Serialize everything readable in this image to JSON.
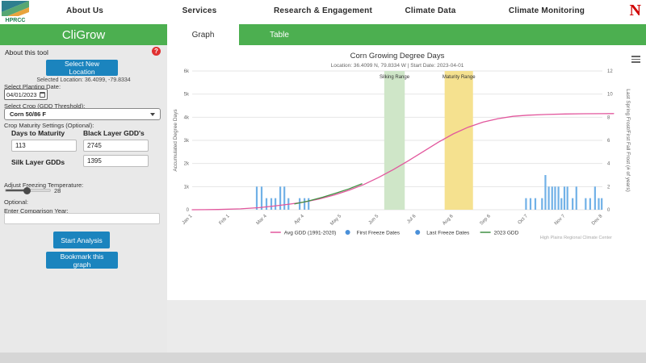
{
  "brand": {
    "logo_text": "HPRCC",
    "university_logo": "N"
  },
  "nav": {
    "items": [
      "About Us",
      "Services",
      "Research & Engagement",
      "Climate Data",
      "Climate Monitoring"
    ]
  },
  "app": {
    "title": "CliGrow",
    "about_label": "About this tool",
    "help_icon": "?"
  },
  "tabs": [
    {
      "label": "Graph"
    },
    {
      "label": "Table"
    }
  ],
  "sidebar": {
    "select_location_button": "Select New Location",
    "selected_location": "Selected Location: 36.4099, -79.8334",
    "planting_date_label": "Select Planting Date:",
    "planting_date_value": "04/01/2023",
    "crop_label": "Select Crop (GDD Threshold):",
    "crop_value": "Corn 50/86 F",
    "maturity_label": "Crop Maturity Settings (Optional):",
    "days_to_maturity_label": "Days to Maturity",
    "days_to_maturity_value": "113",
    "black_layer_label": "Black Layer GDD's",
    "black_layer_value": "2745",
    "silk_layer_label": "Silk Layer GDDs",
    "silk_layer_value": "1395",
    "freeze_temp_label": "Adjust Freezing Temperature:",
    "freeze_temp_value": "28",
    "optional_label": "Optional:",
    "comparison_year_label": "Enter Comparison Year:",
    "comparison_year_value": "",
    "start_button": "Start Analysis",
    "bookmark_button": "Bookmark this graph"
  },
  "credit": "High Plains Regional Climate Center",
  "chart_data": {
    "type": "line",
    "title": "Corn Growing Degree Days",
    "subtitle": "Location: 36.4099 N, 79.8334 W | Start Date: 2023-04-01",
    "x_tick_labels": [
      "Jan 1",
      "Feb 1",
      "Mar 4",
      "Apr 4",
      "May 5",
      "Jun 5",
      "Jul 6",
      "Aug 6",
      "Sep 6",
      "Oct 7",
      "Nov 7",
      "Dec 8"
    ],
    "y_left": {
      "title": "Accumulated Degree Days",
      "min": 0,
      "max": 6000,
      "tick_labels": [
        "0",
        "1k",
        "2k",
        "3k",
        "4k",
        "5k",
        "6k"
      ]
    },
    "y_right": {
      "title": "Last Spring Frost/First Fall Frost (# of years)",
      "min": 0,
      "max": 12,
      "tick_labels": [
        "0",
        "2",
        "4",
        "6",
        "8",
        "10",
        "12"
      ]
    },
    "grid": true,
    "legend_position": "bottom",
    "plot_bands": [
      {
        "label": "Silking Range",
        "x_from": 5.15,
        "x_to": 5.7,
        "color": "#cfe6c8"
      },
      {
        "label": "Maturity Range",
        "x_from": 6.77,
        "x_to": 7.53,
        "color": "#f5e18f"
      }
    ],
    "series": [
      {
        "name": "Avg GDD (1991-2020)",
        "type": "line",
        "axis": "left",
        "color": "#e2579d",
        "marker": "line",
        "points": [
          [
            0,
            0
          ],
          [
            0.7,
            10
          ],
          [
            1.3,
            40
          ],
          [
            1.8,
            90
          ],
          [
            2.2,
            160
          ],
          [
            2.6,
            240
          ],
          [
            3.0,
            330
          ],
          [
            3.4,
            460
          ],
          [
            3.8,
            630
          ],
          [
            4.2,
            840
          ],
          [
            4.6,
            1090
          ],
          [
            5.0,
            1400
          ],
          [
            5.4,
            1740
          ],
          [
            5.8,
            2120
          ],
          [
            6.2,
            2520
          ],
          [
            6.6,
            2920
          ],
          [
            7.0,
            3280
          ],
          [
            7.4,
            3570
          ],
          [
            7.8,
            3790
          ],
          [
            8.2,
            3940
          ],
          [
            8.6,
            4040
          ],
          [
            9.0,
            4090
          ],
          [
            9.5,
            4120
          ],
          [
            10.0,
            4140
          ],
          [
            10.5,
            4150
          ],
          [
            11.0,
            4155
          ],
          [
            11.3,
            4158
          ]
        ]
      },
      {
        "name": "First Freeze Dates",
        "type": "column",
        "axis": "right",
        "color": "#71b1e7",
        "marker": "dot",
        "points": [
          [
            8.95,
            1
          ],
          [
            9.07,
            1
          ],
          [
            9.2,
            1
          ],
          [
            9.38,
            1
          ],
          [
            9.47,
            3
          ],
          [
            9.56,
            2
          ],
          [
            9.65,
            2
          ],
          [
            9.73,
            2
          ],
          [
            9.82,
            2
          ],
          [
            9.9,
            1
          ],
          [
            9.98,
            2
          ],
          [
            10.06,
            2
          ],
          [
            10.2,
            1
          ],
          [
            10.3,
            2
          ],
          [
            10.55,
            1
          ],
          [
            10.67,
            1
          ],
          [
            10.8,
            2
          ],
          [
            10.9,
            1
          ],
          [
            10.98,
            1
          ]
        ]
      },
      {
        "name": "Last Freeze Dates",
        "type": "column",
        "axis": "right",
        "color": "#71b1e7",
        "marker": "dot",
        "points": [
          [
            1.73,
            2
          ],
          [
            1.86,
            2
          ],
          [
            1.99,
            1
          ],
          [
            2.12,
            1
          ],
          [
            2.23,
            1
          ],
          [
            2.36,
            2
          ],
          [
            2.47,
            2
          ],
          [
            2.58,
            1
          ],
          [
            2.88,
            1
          ],
          [
            3.01,
            1
          ],
          [
            3.12,
            1
          ]
        ]
      },
      {
        "name": "2023 GDD",
        "type": "line",
        "axis": "left",
        "color": "#3f9142",
        "marker": "line",
        "points": [
          [
            2.75,
            250
          ],
          [
            3.1,
            370
          ],
          [
            3.5,
            540
          ],
          [
            3.9,
            740
          ],
          [
            4.2,
            900
          ],
          [
            4.55,
            1120
          ]
        ]
      }
    ]
  }
}
